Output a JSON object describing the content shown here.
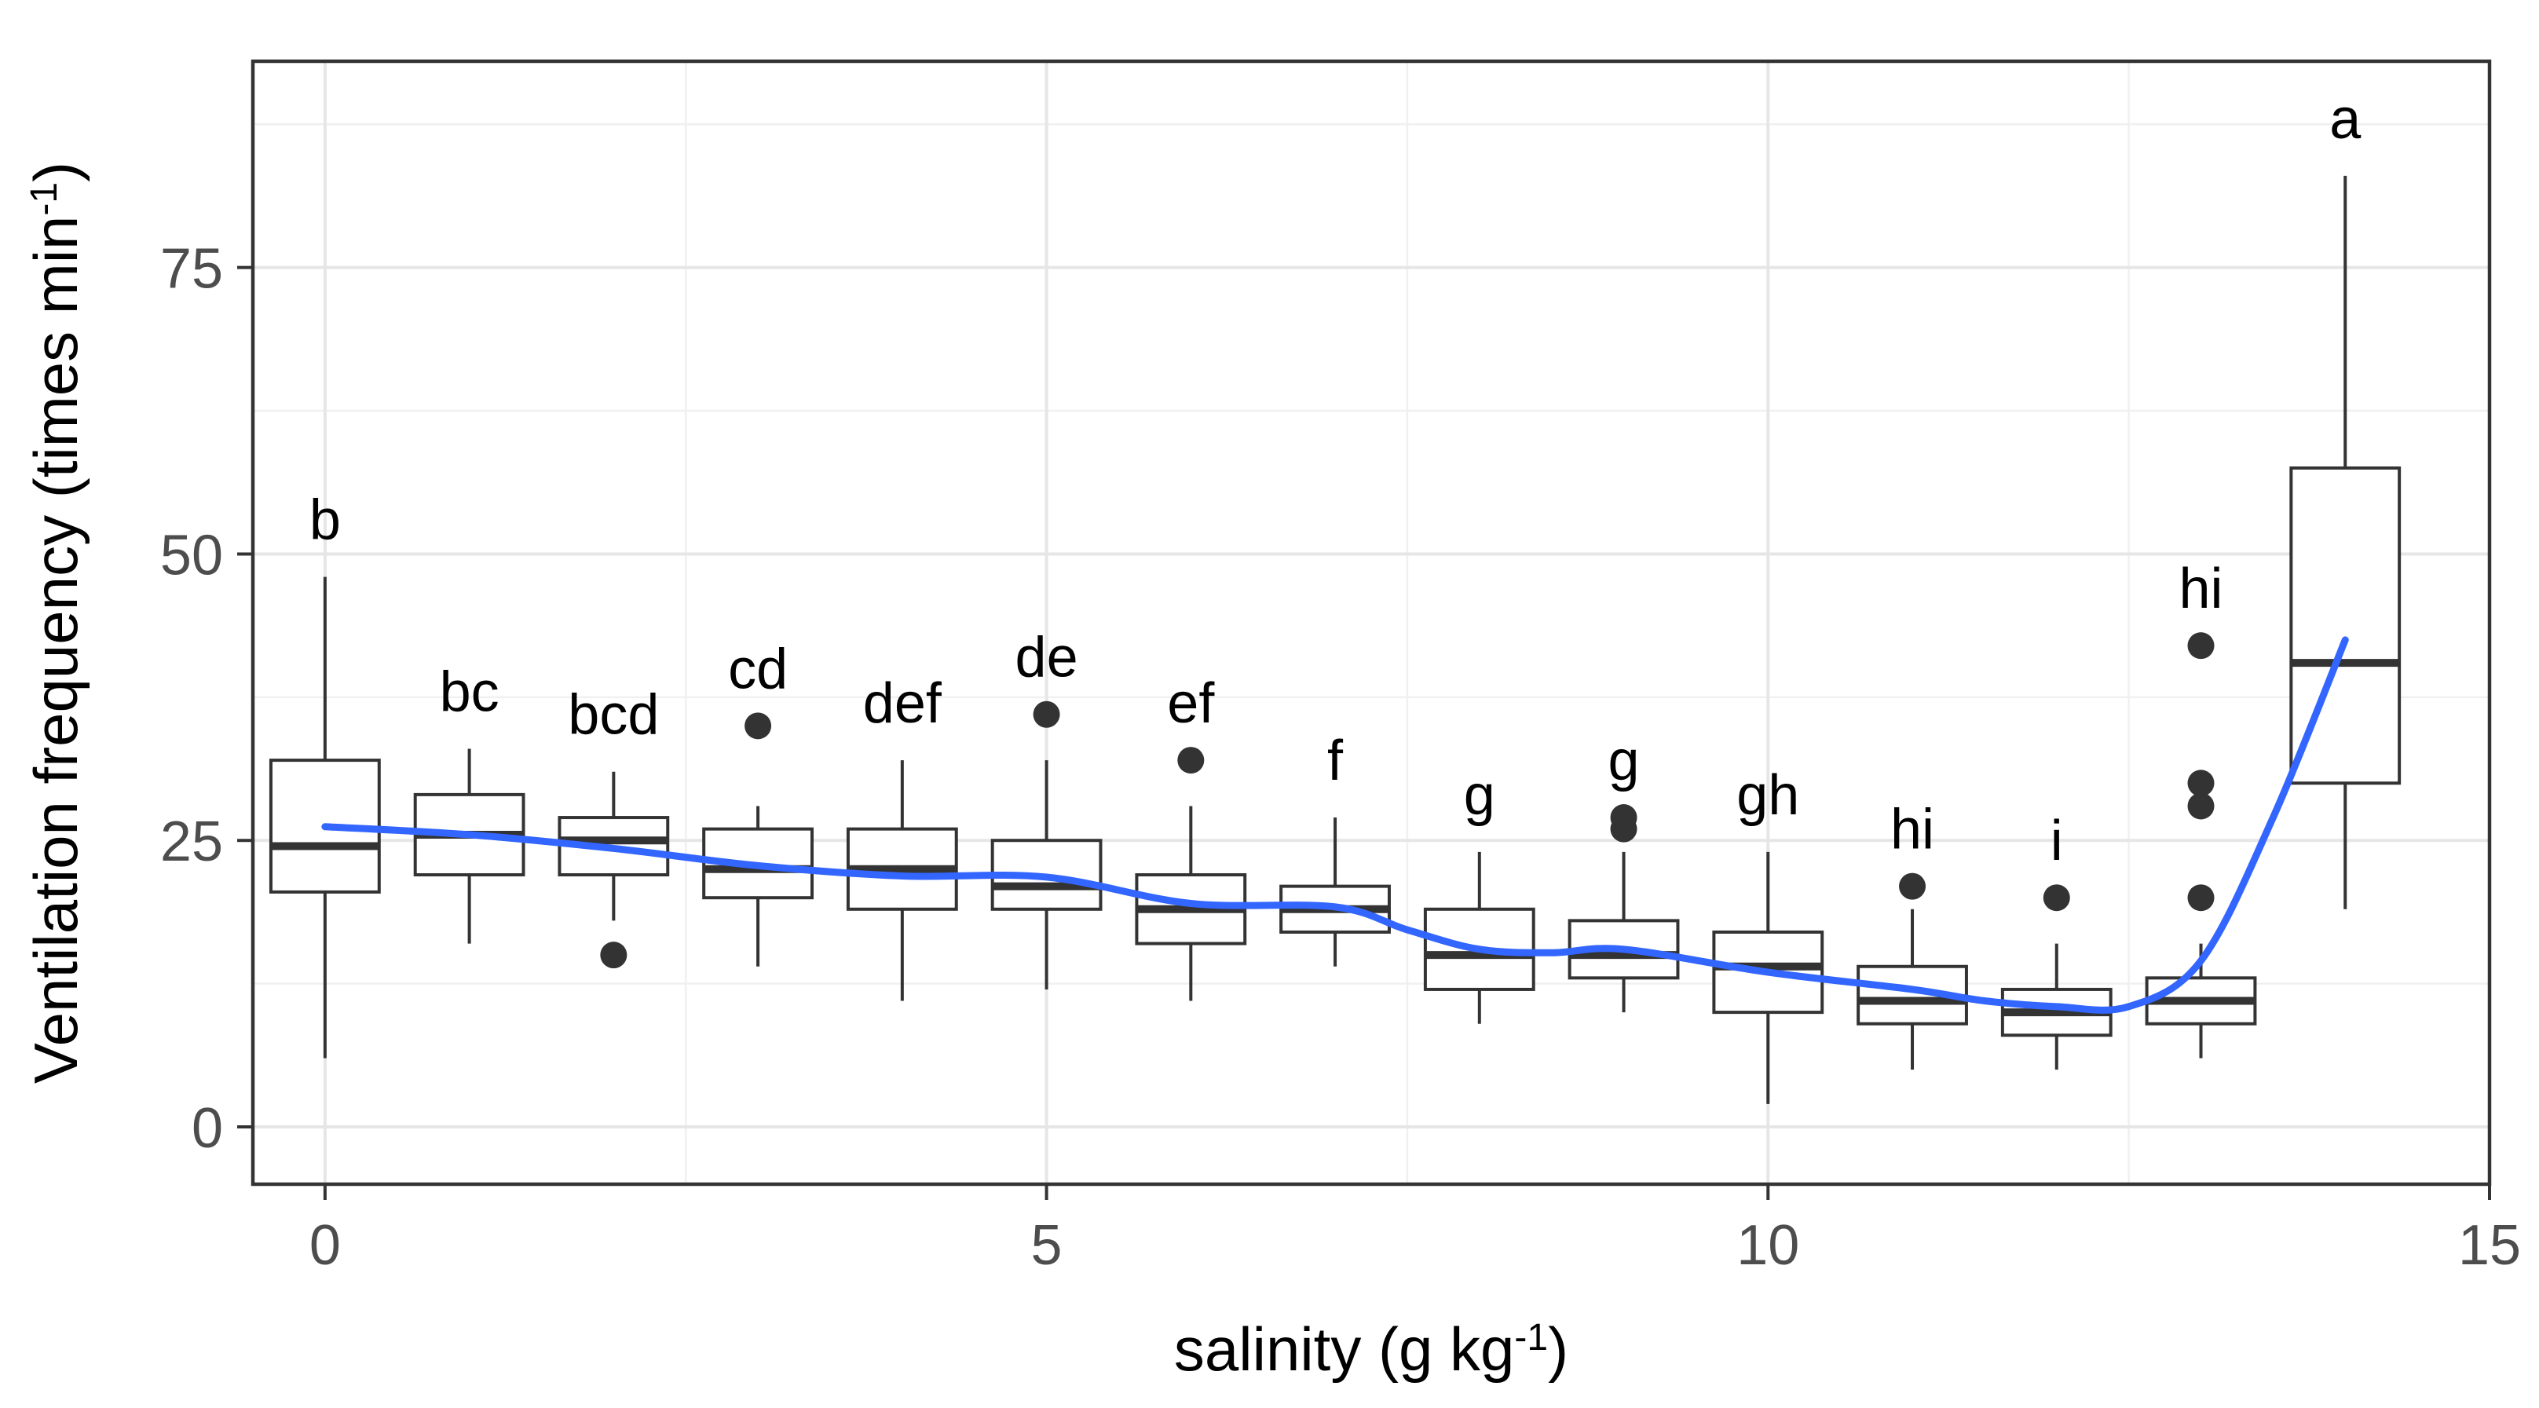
{
  "chart_data": {
    "type": "boxplot",
    "title": "",
    "xlabel": "salinity (g kg",
    "xlabel_sup": "-1",
    "xlabel_close": ")",
    "ylabel": "Ventilation frequency (times min",
    "ylabel_sup": "-1",
    "ylabel_close": ")",
    "xlim": [
      -0.5,
      15
    ],
    "ylim": [
      -5,
      93
    ],
    "x_ticks": [
      0,
      5,
      10,
      15
    ],
    "x_tick_labels": [
      "0",
      "5",
      "10",
      "15"
    ],
    "y_ticks": [
      0,
      25,
      50,
      75
    ],
    "y_tick_labels": [
      "0",
      "25",
      "50",
      "75"
    ],
    "grid": true,
    "boxes": [
      {
        "x": 0,
        "letter": "b",
        "lower_whisker": 6,
        "q1": 20.5,
        "median": 24.5,
        "q3": 32,
        "upper_whisker": 48,
        "outliers": []
      },
      {
        "x": 1,
        "letter": "bc",
        "lower_whisker": 16,
        "q1": 22,
        "median": 25.5,
        "q3": 29,
        "upper_whisker": 33,
        "outliers": []
      },
      {
        "x": 2,
        "letter": "bcd",
        "lower_whisker": 18,
        "q1": 22,
        "median": 25,
        "q3": 27,
        "upper_whisker": 31,
        "outliers": [
          15
        ]
      },
      {
        "x": 3,
        "letter": "cd",
        "lower_whisker": 14,
        "q1": 20,
        "median": 22.5,
        "q3": 26,
        "upper_whisker": 28,
        "outliers": [
          35
        ]
      },
      {
        "x": 4,
        "letter": "def",
        "lower_whisker": 11,
        "q1": 19,
        "median": 22.5,
        "q3": 26,
        "upper_whisker": 32,
        "outliers": []
      },
      {
        "x": 5,
        "letter": "de",
        "lower_whisker": 12,
        "q1": 19,
        "median": 21,
        "q3": 25,
        "upper_whisker": 32,
        "outliers": [
          36
        ]
      },
      {
        "x": 6,
        "letter": "ef",
        "lower_whisker": 11,
        "q1": 16,
        "median": 19,
        "q3": 22,
        "upper_whisker": 28,
        "outliers": [
          32
        ]
      },
      {
        "x": 7,
        "letter": "f",
        "lower_whisker": 14,
        "q1": 17,
        "median": 19,
        "q3": 21,
        "upper_whisker": 27,
        "outliers": []
      },
      {
        "x": 8,
        "letter": "g",
        "lower_whisker": 9,
        "q1": 12,
        "median": 15,
        "q3": 19,
        "upper_whisker": 24,
        "outliers": []
      },
      {
        "x": 9,
        "letter": "g",
        "lower_whisker": 10,
        "q1": 13,
        "median": 15,
        "q3": 18,
        "upper_whisker": 24,
        "outliers": [
          26,
          27
        ]
      },
      {
        "x": 10,
        "letter": "gh",
        "lower_whisker": 2,
        "q1": 10,
        "median": 14,
        "q3": 17,
        "upper_whisker": 24,
        "outliers": []
      },
      {
        "x": 11,
        "letter": "hi",
        "lower_whisker": 5,
        "q1": 9,
        "median": 11,
        "q3": 14,
        "upper_whisker": 19,
        "outliers": [
          21
        ]
      },
      {
        "x": 12,
        "letter": "i",
        "lower_whisker": 5,
        "q1": 8,
        "median": 10,
        "q3": 12,
        "upper_whisker": 16,
        "outliers": [
          20
        ]
      },
      {
        "x": 13,
        "letter": "hi",
        "lower_whisker": 6,
        "q1": 9,
        "median": 11,
        "q3": 13,
        "upper_whisker": 16,
        "outliers": [
          20,
          28,
          30,
          42
        ]
      },
      {
        "x": 14,
        "letter": "a",
        "lower_whisker": 19,
        "q1": 30,
        "median": 40.5,
        "q3": 57.5,
        "upper_whisker": 83,
        "outliers": []
      }
    ],
    "smooth_line": {
      "x": [
        0,
        1,
        2,
        3,
        4,
        5,
        6,
        7,
        7.5,
        8,
        8.5,
        9,
        10,
        11,
        11.5,
        12,
        12.5,
        13,
        13.5,
        14
      ],
      "y": [
        26.2,
        25.5,
        24.3,
        22.8,
        21.9,
        21.8,
        19.5,
        19.2,
        17.2,
        15.5,
        15.2,
        15.5,
        13.5,
        12,
        11,
        10.5,
        10.5,
        14.5,
        27,
        42.5
      ]
    },
    "colors": {
      "smooth": "#3366ff",
      "box_stroke": "#333333",
      "grid": "#e6e6e6",
      "panel_border": "#333333"
    }
  }
}
